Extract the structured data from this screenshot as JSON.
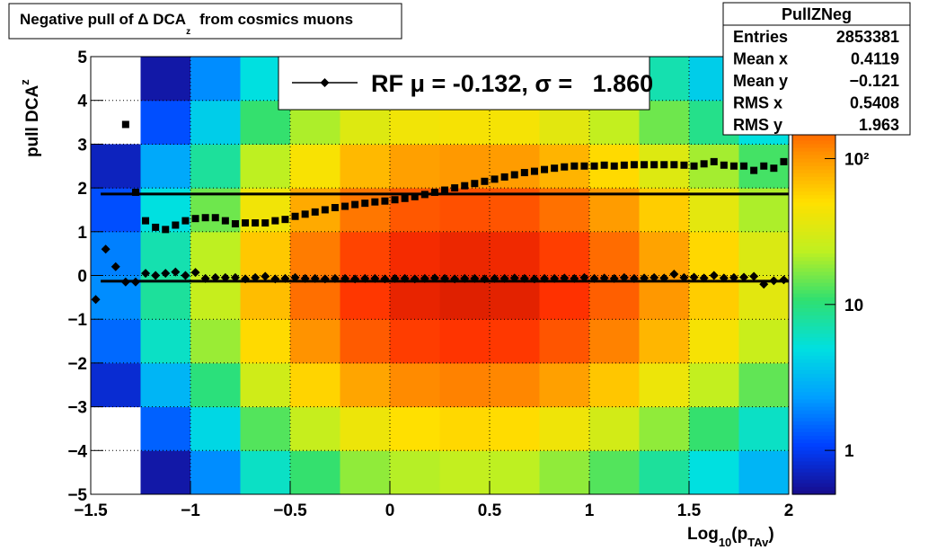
{
  "chart_data": {
    "type": "heatmap",
    "title": "Negative pull of Δ DCA",
    "title_sub": "z",
    "title_tail": "from cosmics muons",
    "ylabel": "pull DCA",
    "ylabel_sub": "z",
    "xlabel": "Log",
    "xlabel_sub": "10",
    "xlabel_mid": "(p",
    "xlabel_sub2": "TAv",
    "xlabel_tail": ")",
    "xlim": [
      -1.5,
      2
    ],
    "ylim": [
      -5,
      5
    ],
    "zlim": [
      0.5,
      500
    ],
    "zlog": true,
    "grid": true,
    "xticks": [
      {
        "value": -1.5,
        "label": "−1.5"
      },
      {
        "value": -1,
        "label": "−1"
      },
      {
        "value": -0.5,
        "label": "−0.5"
      },
      0,
      0.5,
      1,
      1.5,
      2
    ],
    "yticks": [
      {
        "value": -5,
        "label": "−5"
      },
      {
        "value": -4,
        "label": "−4"
      },
      {
        "value": -3,
        "label": "−3"
      },
      {
        "value": -2,
        "label": "−2"
      },
      {
        "value": -1,
        "label": "−1"
      },
      0,
      1,
      2,
      3,
      4,
      5
    ],
    "zticks": [
      1,
      10,
      {
        "value": 100,
        "label": "10²"
      }
    ],
    "palette": [
      "#170c8c",
      "#0040ff",
      "#00a0ff",
      "#00e0e0",
      "#30e070",
      "#c0f020",
      "#ffe000",
      "#ff9000",
      "#ff3000",
      "#a00000"
    ],
    "xbins": [
      -1.5,
      -1.25,
      -1,
      -0.75,
      -0.5,
      -0.25,
      0,
      0.25,
      0.5,
      0.75,
      1,
      1.25,
      1.5,
      1.75,
      2
    ],
    "ybins": [
      -5,
      -4,
      -3,
      -2,
      -1,
      0,
      1,
      2,
      3,
      4,
      5
    ],
    "z": [
      [
        0.2,
        0.6,
        2,
        6,
        11,
        18,
        22,
        24,
        23,
        18,
        13,
        8,
        5,
        3
      ],
      [
        0.4,
        1.4,
        4.5,
        13,
        25,
        40,
        50,
        54,
        52,
        41,
        29,
        18,
        11,
        6
      ],
      [
        0.8,
        3,
        10,
        28,
        56,
        88,
        112,
        120,
        116,
        92,
        64,
        40,
        24,
        14
      ],
      [
        1.5,
        6,
        19,
        53,
        105,
        165,
        210,
        225,
        218,
        173,
        120,
        75,
        45,
        26
      ],
      [
        2,
        8,
        25,
        70,
        140,
        220,
        280,
        300,
        290,
        230,
        160,
        100,
        60,
        35
      ],
      [
        1.8,
        7,
        23,
        63,
        126,
        198,
        252,
        270,
        261,
        207,
        144,
        90,
        54,
        32
      ],
      [
        1.2,
        5,
        15,
        42,
        84,
        132,
        168,
        180,
        174,
        138,
        96,
        60,
        36,
        21
      ],
      [
        0.7,
        2.6,
        8,
        23,
        46,
        73,
        92,
        99,
        96,
        76,
        53,
        33,
        20,
        12
      ],
      [
        0.3,
        1.2,
        4,
        11,
        21,
        33,
        42,
        45,
        44,
        35,
        24,
        15,
        9,
        5
      ],
      [
        0.2,
        0.6,
        2,
        5,
        10,
        15,
        20,
        21,
        20,
        16,
        11,
        7,
        4,
        2.5
      ]
    ],
    "x": [
      -1.475,
      -1.425,
      -1.375,
      -1.325,
      -1.275,
      -1.225,
      -1.175,
      -1.125,
      -1.075,
      -1.025,
      -0.975,
      -0.925,
      -0.875,
      -0.825,
      -0.775,
      -0.725,
      -0.675,
      -0.625,
      -0.575,
      -0.525,
      -0.475,
      -0.425,
      -0.375,
      -0.325,
      -0.275,
      -0.225,
      -0.175,
      -0.125,
      -0.075,
      -0.025,
      0.025,
      0.075,
      0.125,
      0.175,
      0.225,
      0.275,
      0.325,
      0.375,
      0.425,
      0.475,
      0.525,
      0.575,
      0.625,
      0.675,
      0.725,
      0.775,
      0.825,
      0.875,
      0.925,
      0.975,
      1.025,
      1.075,
      1.125,
      1.175,
      1.225,
      1.275,
      1.325,
      1.375,
      1.425,
      1.475,
      1.525,
      1.575,
      1.625,
      1.675,
      1.725,
      1.775,
      1.825,
      1.875,
      1.925,
      1.975
    ],
    "series": [
      {
        "marker": "diamond",
        "color": "#000000",
        "values": [
          -0.55,
          0.6,
          0.2,
          -0.15,
          -0.15,
          0.05,
          0.0,
          0.05,
          0.08,
          0.0,
          0.07,
          -0.07,
          -0.05,
          -0.05,
          -0.05,
          -0.08,
          -0.05,
          -0.02,
          -0.08,
          -0.07,
          -0.05,
          -0.07,
          -0.07,
          -0.08,
          -0.07,
          -0.07,
          -0.08,
          -0.07,
          -0.07,
          -0.08,
          -0.07,
          -0.07,
          -0.08,
          -0.07,
          -0.06,
          -0.07,
          -0.08,
          -0.07,
          -0.07,
          -0.08,
          -0.07,
          -0.07,
          -0.06,
          -0.07,
          -0.08,
          -0.07,
          -0.07,
          -0.06,
          -0.07,
          -0.05,
          -0.07,
          -0.06,
          -0.07,
          -0.05,
          -0.07,
          -0.06,
          -0.05,
          -0.06,
          0.03,
          -0.05,
          -0.04,
          -0.06,
          0.0,
          -0.06,
          -0.05,
          -0.04,
          -0.02,
          -0.2,
          -0.12,
          -0.1
        ]
      },
      {
        "marker": "square",
        "color": "#000000",
        "values": [
          null,
          null,
          null,
          3.45,
          1.9,
          1.25,
          1.1,
          1.05,
          1.15,
          1.25,
          1.3,
          1.32,
          1.32,
          1.25,
          1.18,
          1.2,
          1.2,
          1.2,
          1.25,
          1.28,
          1.35,
          1.4,
          1.45,
          1.5,
          1.55,
          1.58,
          1.62,
          1.65,
          1.68,
          1.7,
          1.73,
          1.76,
          1.8,
          1.85,
          1.9,
          1.95,
          2.0,
          2.05,
          2.1,
          2.15,
          2.2,
          2.25,
          2.3,
          2.35,
          2.38,
          2.42,
          2.45,
          2.48,
          2.5,
          2.5,
          2.5,
          2.52,
          2.5,
          2.52,
          2.53,
          2.53,
          2.53,
          2.53,
          2.53,
          2.52,
          2.5,
          2.55,
          2.6,
          2.52,
          2.5,
          2.5,
          2.4,
          2.5,
          2.45,
          2.6
        ]
      }
    ],
    "fit": {
      "mu": -0.132,
      "sigma": 1.86,
      "xlim": [
        -1.45,
        2
      ]
    },
    "legend": "RF μ = -0.132, σ =   1.860",
    "stats": {
      "title": "PullZNeg",
      "rows": [
        [
          "Entries",
          "2853381"
        ],
        [
          "Mean x",
          "0.4119"
        ],
        [
          "Mean y",
          "−0.121"
        ],
        [
          "RMS x",
          "0.5408"
        ],
        [
          "RMS y",
          "1.963"
        ]
      ]
    }
  }
}
